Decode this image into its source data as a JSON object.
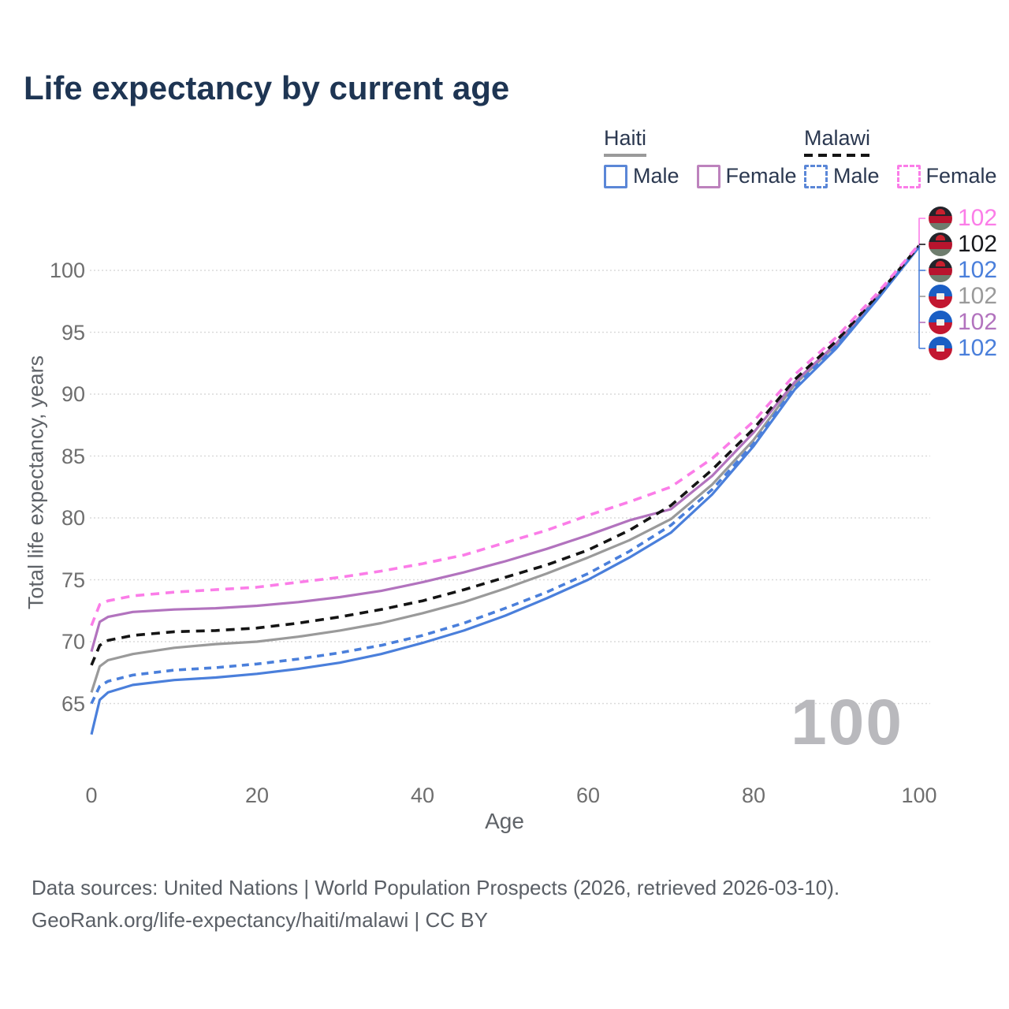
{
  "title": "Life expectancy by current age",
  "legend": {
    "groups": [
      {
        "label": "Haiti",
        "line_style": "solid",
        "swatch_color": "#9a9a9a",
        "items": [
          {
            "label": "Male",
            "color": "#5b87d7",
            "style": "solid"
          },
          {
            "label": "Female",
            "color": "#bd82bd",
            "style": "solid"
          }
        ]
      },
      {
        "label": "Malawi",
        "line_style": "dashed",
        "swatch_color": "#141414",
        "items": [
          {
            "label": "Male",
            "color": "#5b87d7",
            "style": "dashed"
          },
          {
            "label": "Female",
            "color": "#fb7de8",
            "style": "dashed"
          }
        ]
      }
    ]
  },
  "axes": {
    "y_title": "Total life expectancy, years",
    "x_title": "Age",
    "yticks": [
      65,
      70,
      75,
      80,
      85,
      90,
      95,
      100
    ],
    "xticks": [
      0,
      20,
      40,
      60,
      80,
      100
    ]
  },
  "right_labels": [
    {
      "flag": "malawi",
      "series": "Malawi Female",
      "value": "102",
      "color": "#fb7de8"
    },
    {
      "flag": "malawi",
      "series": "Malawi",
      "value": "102",
      "color": "#17181c"
    },
    {
      "flag": "malawi",
      "series": "Malawi Male",
      "value": "102",
      "color": "#4a7fdb"
    },
    {
      "flag": "haiti",
      "series": "Haiti",
      "value": "102",
      "color": "#9a9a9a"
    },
    {
      "flag": "haiti",
      "series": "Haiti Female",
      "value": "102",
      "color": "#b273be"
    },
    {
      "flag": "haiti",
      "series": "Haiti Male",
      "value": "102",
      "color": "#4a7fdb"
    }
  ],
  "watermark": "100",
  "footer": {
    "line1": "Data sources: United Nations | World Population Prospects (2026, retrieved 2026-03-10).",
    "line2": "GeoRank.org/life-expectancy/haiti/malawi | CC BY"
  },
  "chart_data": {
    "type": "line",
    "title": "Life expectancy by current age",
    "xlabel": "Age",
    "ylabel": "Total life expectancy, years",
    "xlim": [
      0,
      100
    ],
    "ylim_displayed": [
      65,
      100
    ],
    "grid": "horizontal-dotted",
    "x": [
      0,
      1,
      2,
      5,
      10,
      15,
      20,
      25,
      30,
      35,
      40,
      45,
      50,
      55,
      60,
      65,
      70,
      75,
      80,
      85,
      90,
      95,
      100
    ],
    "series": [
      {
        "name": "Haiti Male",
        "country": "Haiti",
        "sex": "Male",
        "style": "solid",
        "color": "#4a7fdb",
        "dash": null,
        "end_label": "102",
        "values": [
          62.5,
          65.3,
          65.9,
          66.5,
          66.9,
          67.1,
          67.4,
          67.8,
          68.3,
          69.0,
          69.9,
          70.9,
          72.1,
          73.5,
          75.0,
          76.8,
          78.8,
          81.9,
          85.8,
          90.4,
          93.7,
          97.7,
          101.9
        ]
      },
      {
        "name": "Haiti Female",
        "country": "Haiti",
        "sex": "Female",
        "style": "solid",
        "color": "#b273be",
        "dash": null,
        "end_label": "102",
        "values": [
          69.2,
          71.6,
          72.0,
          72.4,
          72.6,
          72.7,
          72.9,
          73.2,
          73.6,
          74.1,
          74.8,
          75.6,
          76.5,
          77.5,
          78.6,
          79.8,
          80.7,
          83.4,
          86.9,
          91.0,
          94.1,
          97.9,
          102.0
        ]
      },
      {
        "name": "Haiti (both sexes)",
        "country": "Haiti",
        "sex": "Total",
        "style": "solid",
        "color": "#9a9a9a",
        "dash": null,
        "end_label": "102",
        "values": [
          65.9,
          68.0,
          68.5,
          69.0,
          69.5,
          69.8,
          70.0,
          70.4,
          70.9,
          71.5,
          72.3,
          73.2,
          74.3,
          75.5,
          76.8,
          78.2,
          79.9,
          82.7,
          86.3,
          90.8,
          94.0,
          97.9,
          102.0
        ]
      },
      {
        "name": "Malawi Male",
        "country": "Malawi",
        "sex": "Male",
        "style": "dashed",
        "color": "#4a7fdb",
        "dash": "9 7",
        "end_label": "102",
        "values": [
          65.0,
          66.4,
          66.8,
          67.3,
          67.7,
          67.9,
          68.2,
          68.6,
          69.1,
          69.7,
          70.5,
          71.5,
          72.7,
          74.0,
          75.5,
          77.3,
          79.4,
          82.3,
          86.0,
          90.6,
          93.9,
          97.8,
          102.0
        ]
      },
      {
        "name": "Malawi Female",
        "country": "Malawi",
        "sex": "Female",
        "style": "dashed",
        "color": "#fb7de8",
        "dash": "11 8",
        "end_label": "102",
        "values": [
          71.3,
          73.0,
          73.3,
          73.7,
          74.0,
          74.2,
          74.4,
          74.8,
          75.2,
          75.7,
          76.3,
          77.0,
          78.0,
          79.0,
          80.2,
          81.3,
          82.5,
          84.8,
          87.8,
          91.6,
          94.6,
          98.2,
          102.1
        ]
      },
      {
        "name": "Malawi (both sexes)",
        "country": "Malawi",
        "sex": "Total",
        "style": "dashed",
        "color": "#141414",
        "dash": "11 8",
        "end_label": "102",
        "values": [
          68.1,
          69.7,
          70.1,
          70.5,
          70.8,
          70.9,
          71.1,
          71.5,
          72.0,
          72.6,
          73.3,
          74.2,
          75.2,
          76.2,
          77.4,
          79.0,
          81.0,
          83.9,
          87.2,
          91.2,
          94.3,
          98.0,
          102.0
        ]
      }
    ]
  }
}
